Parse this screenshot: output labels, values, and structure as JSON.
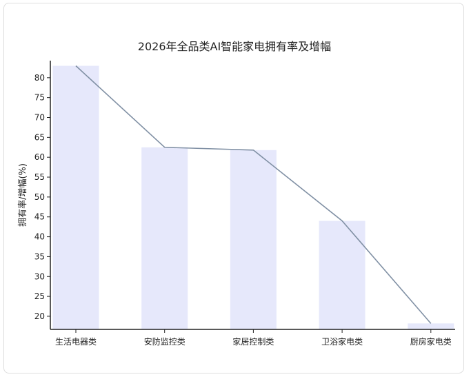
{
  "chart_data": {
    "type": "bar+line",
    "title": "2026年全品类AI智能家电拥有率及增幅",
    "xlabel": "",
    "ylabel": "拥有率/增幅(%)",
    "categories": [
      "生活电器类",
      "安防监控类",
      "家居控制类",
      "卫浴家电类",
      "厨房家电类"
    ],
    "bar_values": [
      83.0,
      62.5,
      61.8,
      44.0,
      18.2
    ],
    "line_values": [
      83.0,
      62.5,
      61.8,
      44.0,
      18.2
    ],
    "ylim": [
      16.7,
      84.3
    ],
    "yticks": [
      20,
      25,
      30,
      35,
      40,
      45,
      50,
      55,
      60,
      65,
      70,
      75,
      80
    ],
    "grid": false,
    "legend": "none",
    "colors": {
      "bar": "#e6e8fb",
      "line": "#8090a4",
      "axis": "#222222"
    }
  }
}
